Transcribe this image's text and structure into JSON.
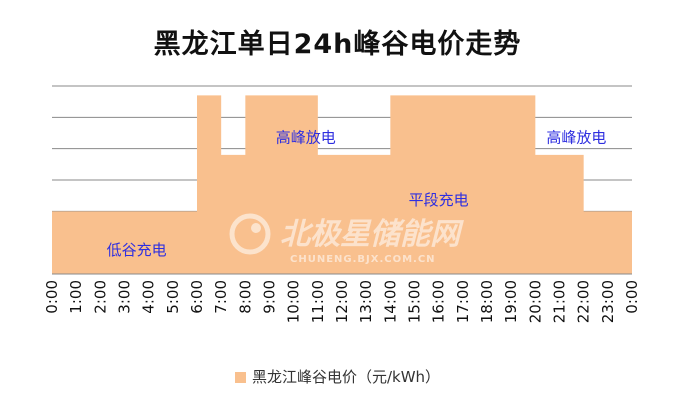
{
  "chart_data": {
    "type": "area",
    "title": "黑龙江单日24h峰谷电价走势",
    "xlabel": "",
    "ylabel": "",
    "ylim": [
      0,
      6
    ],
    "yticks_count": 6,
    "grid": true,
    "legend_position": "bottom",
    "categories": [
      "0:00",
      "1:00",
      "2:00",
      "3:00",
      "4:00",
      "5:00",
      "6:00",
      "7:00",
      "8:00",
      "9:00",
      "10:00",
      "11:00",
      "12:00",
      "13:00",
      "14:00",
      "15:00",
      "16:00",
      "17:00",
      "18:00",
      "19:00",
      "20:00",
      "21:00",
      "22:00",
      "23:00",
      "0:00"
    ],
    "series": [
      {
        "name": "黑龙江峰谷电价（元/kWh）",
        "color": "#F9C08E",
        "values": [
          2,
          2,
          2,
          2,
          2,
          2,
          5.7,
          3.8,
          5.7,
          5.7,
          5.7,
          3.8,
          3.8,
          3.8,
          5.7,
          5.7,
          5.7,
          5.7,
          5.7,
          5.7,
          3.8,
          3.8,
          2,
          2,
          2
        ]
      }
    ],
    "annotations": [
      {
        "text": "低谷充电",
        "x": 3.5,
        "y": 0.6
      },
      {
        "text": "高峰放电",
        "x": 10.5,
        "y": 4.2
      },
      {
        "text": "平段充电",
        "x": 16,
        "y": 2.2
      },
      {
        "text": "高峰放电",
        "x": 21.7,
        "y": 4.2
      }
    ],
    "annotation_color": "#2F2FE0",
    "watermark": {
      "text": "北极星储能网",
      "subtext": "CHUNENG.BJX.COM.CN"
    }
  }
}
